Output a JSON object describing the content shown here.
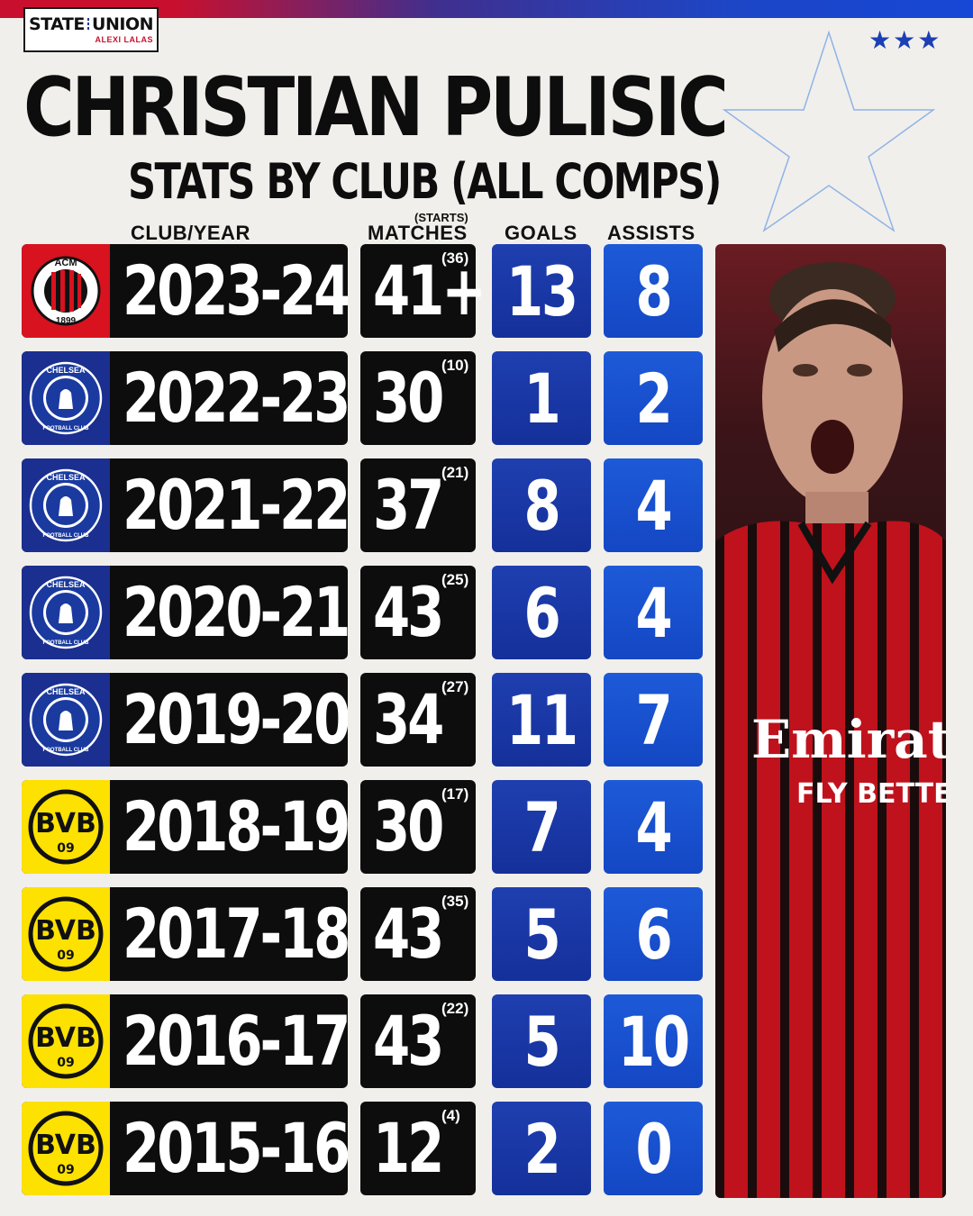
{
  "brand": {
    "line1": "STATE",
    "line1b": "UNION",
    "line2": "ALEXI LALAS"
  },
  "decor": {
    "stars": "★★★"
  },
  "title": "CHRISTIAN PULISIC",
  "subtitle": "STATS BY CLUB (ALL COMPS)",
  "headers": {
    "club_year": "CLUB/YEAR",
    "starts": "(STARTS)",
    "matches": "MATCHES",
    "goals": "GOALS",
    "assists": "ASSISTS"
  },
  "colors": {
    "milan_red": "#d8121f",
    "chelsea_blue": "#1a2f8f",
    "bvb_yellow": "#fde100",
    "goals_blue": "#1f3fb0",
    "assists_blue": "#1d5ad8"
  },
  "rows": [
    {
      "club": "AC Milan",
      "crest_icon": "milan-crest-icon",
      "crest_text_top": "ACM",
      "crest_text_bottom": "1899",
      "year": "2023-24",
      "matches": "41+",
      "starts": "(36)",
      "goals": "13",
      "assists": "8"
    },
    {
      "club": "Chelsea",
      "crest_icon": "chelsea-crest-icon",
      "crest_text_top": "CHELSEA",
      "crest_text_bottom": "FOOTBALL CLUB",
      "year": "2022-23",
      "matches": "30",
      "starts": "(10)",
      "goals": "1",
      "assists": "2"
    },
    {
      "club": "Chelsea",
      "crest_icon": "chelsea-crest-icon",
      "crest_text_top": "CHELSEA",
      "crest_text_bottom": "FOOTBALL CLUB",
      "year": "2021-22",
      "matches": "37",
      "starts": "(21)",
      "goals": "8",
      "assists": "4"
    },
    {
      "club": "Chelsea",
      "crest_icon": "chelsea-crest-icon",
      "crest_text_top": "CHELSEA",
      "crest_text_bottom": "FOOTBALL CLUB",
      "year": "2020-21",
      "matches": "43",
      "starts": "(25)",
      "goals": "6",
      "assists": "4"
    },
    {
      "club": "Chelsea",
      "crest_icon": "chelsea-crest-icon",
      "crest_text_top": "CHELSEA",
      "crest_text_bottom": "FOOTBALL CLUB",
      "year": "2019-20",
      "matches": "34",
      "starts": "(27)",
      "goals": "11",
      "assists": "7"
    },
    {
      "club": "Borussia Dortmund",
      "crest_icon": "bvb-crest-icon",
      "crest_text_top": "BVB",
      "crest_text_bottom": "09",
      "year": "2018-19",
      "matches": "30",
      "starts": "(17)",
      "goals": "7",
      "assists": "4"
    },
    {
      "club": "Borussia Dortmund",
      "crest_icon": "bvb-crest-icon",
      "crest_text_top": "BVB",
      "crest_text_bottom": "09",
      "year": "2017-18",
      "matches": "43",
      "starts": "(35)",
      "goals": "5",
      "assists": "6"
    },
    {
      "club": "Borussia Dortmund",
      "crest_icon": "bvb-crest-icon",
      "crest_text_top": "BVB",
      "crest_text_bottom": "09",
      "year": "2016-17",
      "matches": "43",
      "starts": "(22)",
      "goals": "5",
      "assists": "10"
    },
    {
      "club": "Borussia Dortmund",
      "crest_icon": "bvb-crest-icon",
      "crest_text_top": "BVB",
      "crest_text_bottom": "09",
      "year": "2015-16",
      "matches": "12",
      "starts": "(4)",
      "goals": "2",
      "assists": "0"
    }
  ],
  "photo": {
    "jersey_sponsor_line1": "Emirat",
    "jersey_sponsor_line2": "FLY BETTE"
  }
}
